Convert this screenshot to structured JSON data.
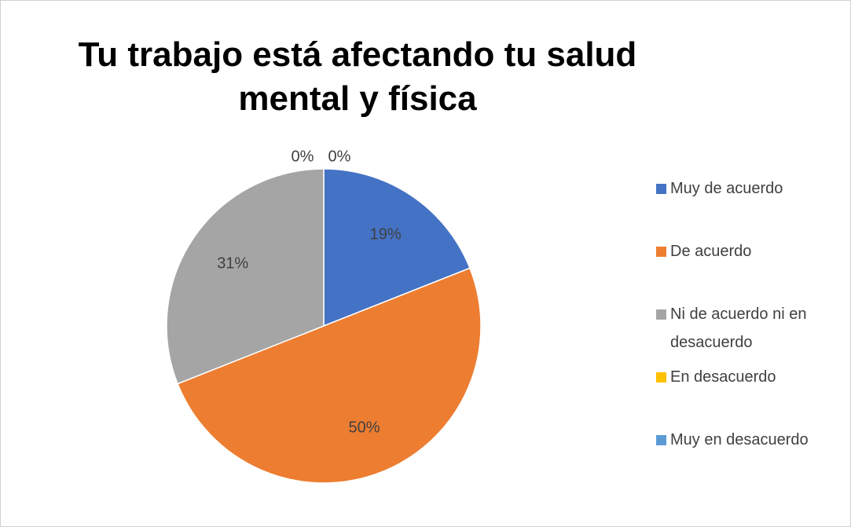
{
  "chart_data": {
    "type": "pie",
    "title": "Tu trabajo está afectando tu salud mental y física",
    "categories": [
      "Muy de acuerdo",
      "De acuerdo",
      "Ni de acuerdo ni en desacuerdo",
      "En desacuerdo",
      "Muy en desacuerdo"
    ],
    "values": [
      19,
      50,
      31,
      0,
      0
    ],
    "value_labels": [
      "19%",
      "50%",
      "31%",
      "0%",
      "0%"
    ],
    "colors": [
      "#4472c4",
      "#ed7d31",
      "#a5a5a5",
      "#ffc000",
      "#5b9bd5"
    ],
    "legend": "right"
  }
}
